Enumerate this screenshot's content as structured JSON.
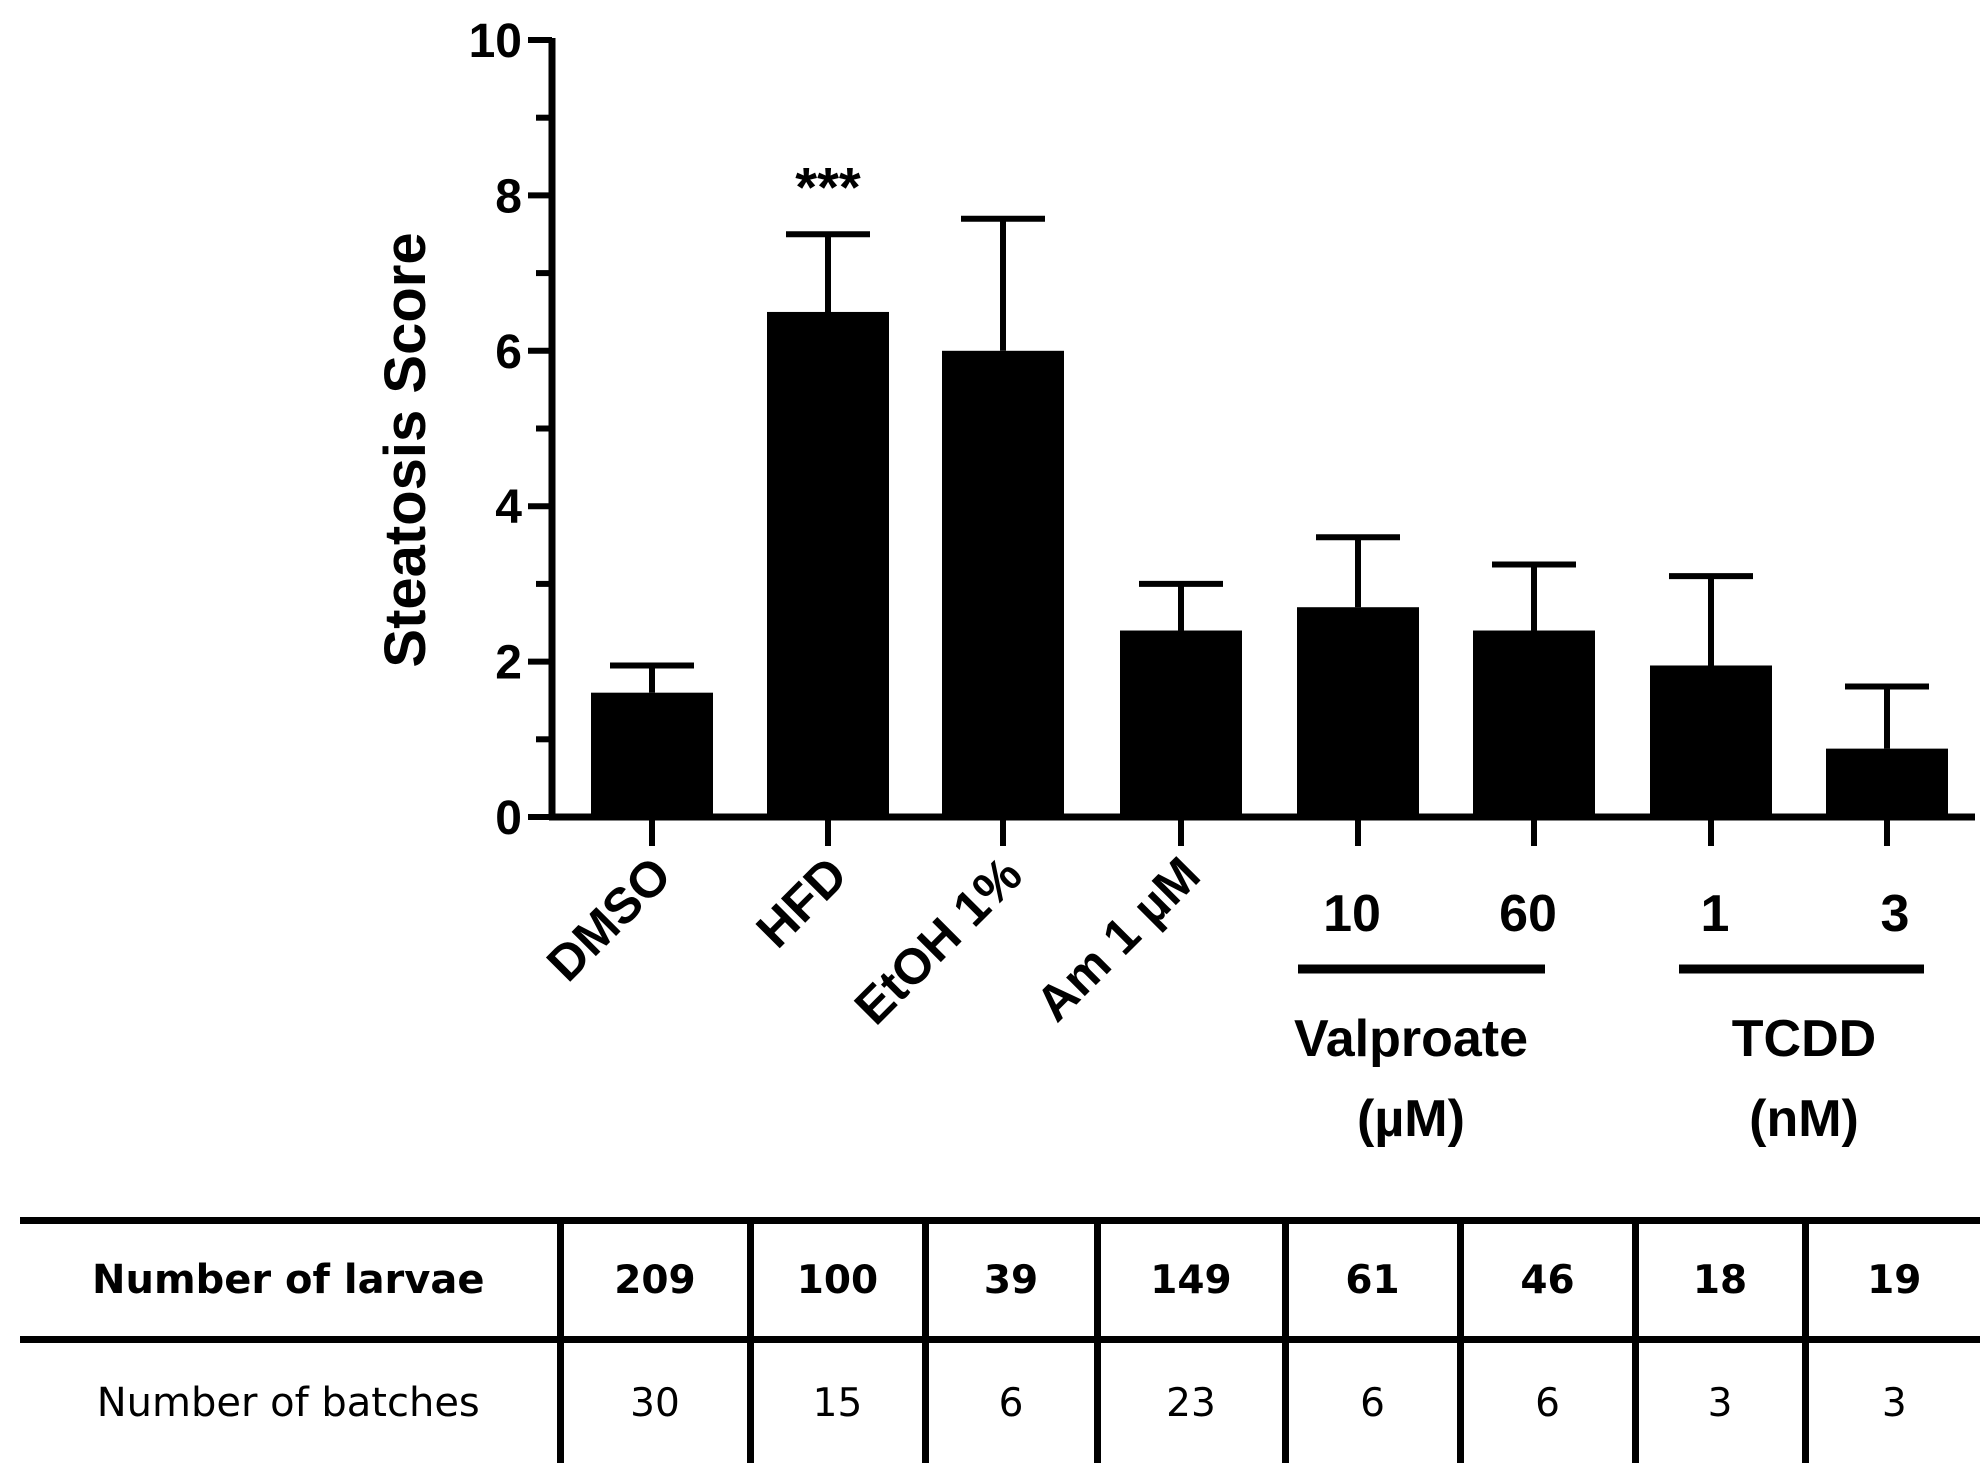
{
  "chart_data": {
    "type": "bar",
    "ylabel": "Steatosis Score",
    "ylim": [
      0,
      10
    ],
    "yticks": [
      0,
      2,
      4,
      6,
      8,
      10
    ],
    "categories": [
      "DMSO",
      "HFD",
      "EtOH 1%",
      "Am 1 µM",
      "10",
      "60",
      "1",
      "3"
    ],
    "values": [
      1.6,
      6.5,
      6.0,
      2.4,
      2.7,
      2.4,
      1.95,
      0.88
    ],
    "errors": [
      0.35,
      1.0,
      1.7,
      0.6,
      0.9,
      0.85,
      1.15,
      0.8
    ],
    "significance": [
      {
        "category": "HFD",
        "label": "***"
      }
    ],
    "rotated_labels": [
      "DMSO",
      "HFD",
      "EtOH 1%",
      "Am 1 µM"
    ],
    "groups": [
      {
        "name": "Valproate",
        "unit": "(µM)",
        "categories": [
          "10",
          "60"
        ]
      },
      {
        "name": "TCDD",
        "unit": "(nM)",
        "categories": [
          "1",
          "3"
        ]
      }
    ]
  },
  "table": {
    "rows": [
      {
        "label": "Number of larvae",
        "values": [
          "209",
          "100",
          "39",
          "149",
          "61",
          "46",
          "18",
          "19"
        ]
      },
      {
        "label": "Number of batches",
        "values": [
          "30",
          "15",
          "6",
          "23",
          "6",
          "6",
          "3",
          "3"
        ]
      }
    ]
  }
}
